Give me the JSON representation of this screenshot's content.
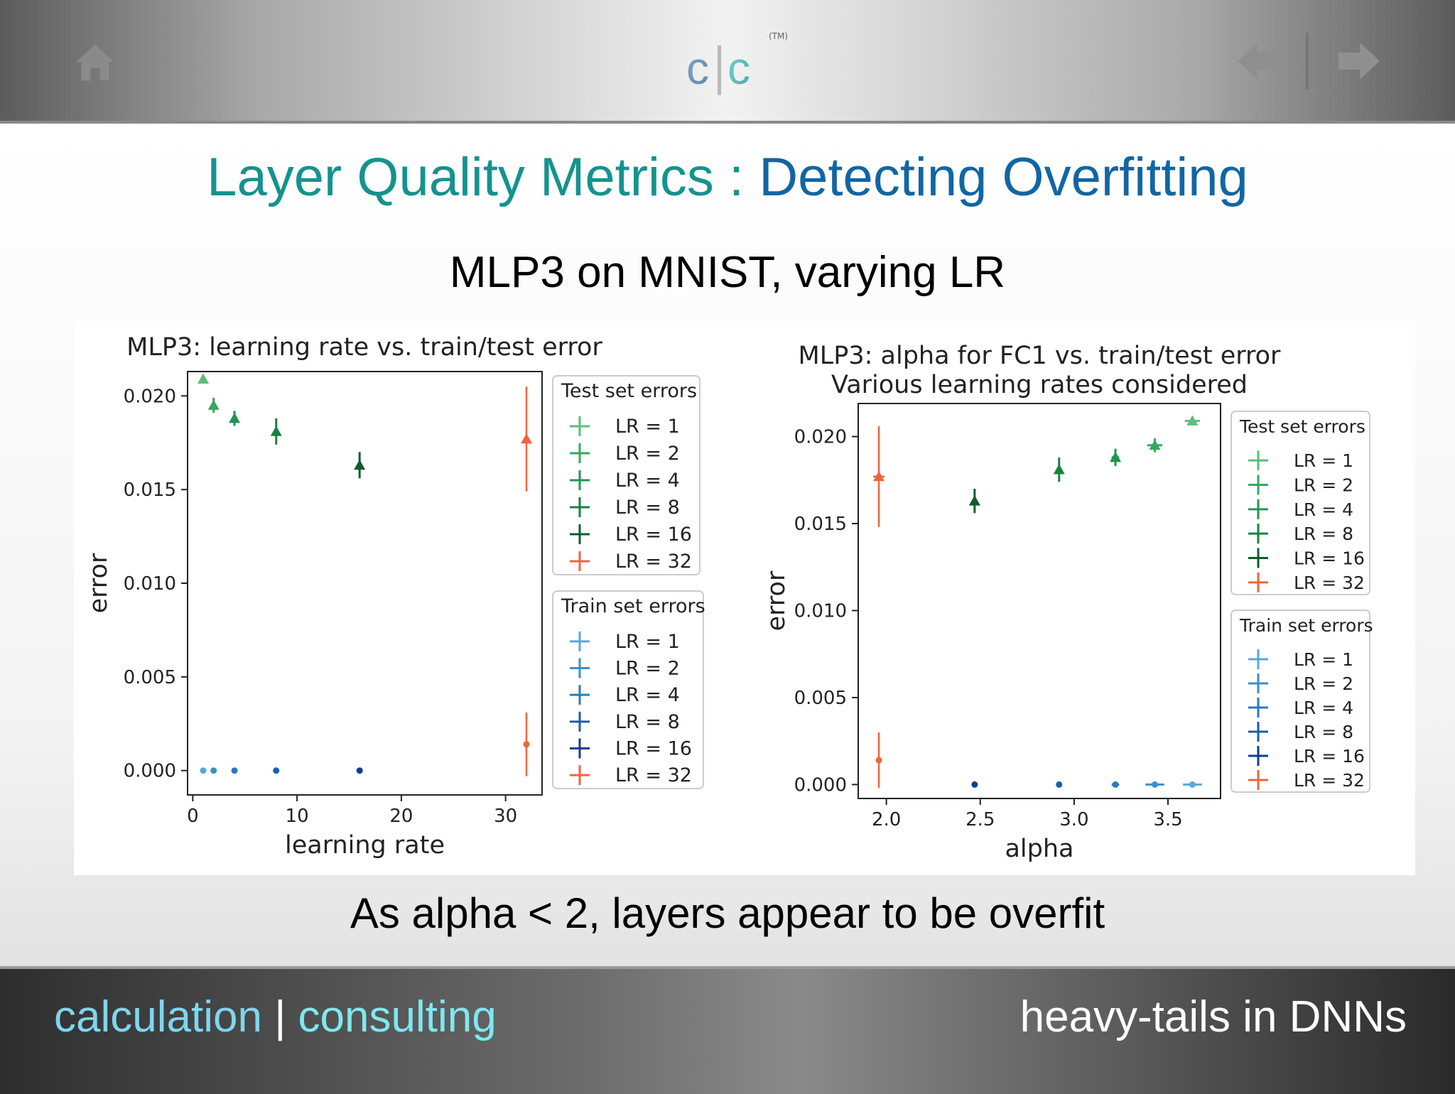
{
  "header": {
    "logo_left": "c",
    "logo_right": "c",
    "trademark": "(TM)",
    "icons": {
      "home": "home-icon",
      "prev": "arrow-left-icon",
      "next": "arrow-right-icon"
    }
  },
  "slide": {
    "title_part1": "Layer Quality Metrics : ",
    "title_part2": "Detecting Overfitting",
    "subtitle": "MLP3 on MNIST, varying LR",
    "caption": "As alpha < 2,  layers appear to be overfit"
  },
  "footer": {
    "left_a": "calculation",
    "left_sep": " | ",
    "left_b": "consulting",
    "right": "heavy-tails in DNNs"
  },
  "colors": {
    "title_teal": "#14938f",
    "title_blue": "#1166a3",
    "lr1": "#5bbf78",
    "lr2": "#34a861",
    "lr4": "#1f9650",
    "lr8": "#17823f",
    "lr16": "#0e5c2c",
    "lr32": "#f0643c",
    "train1": "#5aa7d8",
    "train2": "#3a8fcc",
    "train4": "#2a7ab9",
    "train8": "#1a5ea8",
    "train16": "#0e3f8c"
  },
  "chart_data": [
    {
      "type": "scatter",
      "title": "MLP3: learning rate vs. train/test error",
      "xlabel": "learning rate",
      "ylabel": "error",
      "xlim": [
        -0.5,
        33.5
      ],
      "ylim": [
        -0.0013,
        0.0213
      ],
      "xticks": [
        0,
        10,
        20,
        30
      ],
      "xtick_labels": [
        "0",
        "10",
        "20",
        "30"
      ],
      "yticks": [
        0.0,
        0.005,
        0.01,
        0.015,
        0.02
      ],
      "ytick_labels": [
        "0.000",
        "0.005",
        "0.010",
        "0.015",
        "0.020"
      ],
      "legend_test_title": "Test set errors",
      "legend_train_title": "Train set errors",
      "legend_labels": [
        "LR = 1",
        "LR = 2",
        "LR = 4",
        "LR = 8",
        "LR = 16",
        "LR = 32"
      ],
      "test": [
        {
          "name": "LR = 1",
          "x": 1,
          "y": 0.0209,
          "err": 0.0001
        },
        {
          "name": "LR = 2",
          "x": 2,
          "y": 0.0195,
          "err": 0.0004
        },
        {
          "name": "LR = 4",
          "x": 4,
          "y": 0.0188,
          "err": 0.0004
        },
        {
          "name": "LR = 8",
          "x": 8,
          "y": 0.0181,
          "err": 0.0007
        },
        {
          "name": "LR = 16",
          "x": 16,
          "y": 0.0163,
          "err": 0.0007
        },
        {
          "name": "LR = 32",
          "x": 32,
          "y": 0.0177,
          "err": 0.0028
        }
      ],
      "train": [
        {
          "name": "LR = 1",
          "x": 1,
          "y": 0.0,
          "err": 0.0
        },
        {
          "name": "LR = 2",
          "x": 2,
          "y": 0.0,
          "err": 0.0
        },
        {
          "name": "LR = 4",
          "x": 4,
          "y": 0.0,
          "err": 0.0
        },
        {
          "name": "LR = 8",
          "x": 8,
          "y": 0.0,
          "err": 0.0
        },
        {
          "name": "LR = 16",
          "x": 16,
          "y": 0.0,
          "err": 0.0
        },
        {
          "name": "LR = 32",
          "x": 32,
          "y": 0.0014,
          "err": 0.0017
        }
      ]
    },
    {
      "type": "scatter",
      "title": "MLP3: alpha for FC1 vs. train/test error",
      "subtitle": "Various learning rates considered",
      "xlabel": "alpha",
      "ylabel": "error",
      "xlim": [
        1.85,
        3.78
      ],
      "ylim": [
        -0.0008,
        0.0219
      ],
      "xticks": [
        2.0,
        2.5,
        3.0,
        3.5
      ],
      "xtick_labels": [
        "2.0",
        "2.5",
        "3.0",
        "3.5"
      ],
      "yticks": [
        0.0,
        0.005,
        0.01,
        0.015,
        0.02
      ],
      "ytick_labels": [
        "0.000",
        "0.005",
        "0.010",
        "0.015",
        "0.020"
      ],
      "legend_test_title": "Test set errors",
      "legend_train_title": "Train set errors",
      "legend_labels": [
        "LR = 1",
        "LR = 2",
        "LR = 4",
        "LR = 8",
        "LR = 16",
        "LR = 32"
      ],
      "test": [
        {
          "name": "LR = 1",
          "x": 3.63,
          "y": 0.0209,
          "xerr": 0.04,
          "err": 0.0001
        },
        {
          "name": "LR = 2",
          "x": 3.43,
          "y": 0.0195,
          "xerr": 0.04,
          "err": 0.0004
        },
        {
          "name": "LR = 4",
          "x": 3.22,
          "y": 0.0188,
          "xerr": 0.02,
          "err": 0.0005
        },
        {
          "name": "LR = 8",
          "x": 2.92,
          "y": 0.0181,
          "xerr": 0.01,
          "err": 0.0007
        },
        {
          "name": "LR = 16",
          "x": 2.47,
          "y": 0.0163,
          "xerr": 0.01,
          "err": 0.0007
        },
        {
          "name": "LR = 32",
          "x": 1.96,
          "y": 0.0177,
          "xerr": 0.03,
          "err": 0.0029
        }
      ],
      "train": [
        {
          "name": "LR = 1",
          "x": 3.63,
          "y": 0.0,
          "xerr": 0.05,
          "err": 0.0
        },
        {
          "name": "LR = 2",
          "x": 3.43,
          "y": 0.0,
          "xerr": 0.05,
          "err": 0.0
        },
        {
          "name": "LR = 4",
          "x": 3.22,
          "y": 0.0,
          "xerr": 0.02,
          "err": 0.0
        },
        {
          "name": "LR = 8",
          "x": 2.92,
          "y": 0.0,
          "xerr": 0.0,
          "err": 0.0
        },
        {
          "name": "LR = 16",
          "x": 2.47,
          "y": 0.0,
          "xerr": 0.0,
          "err": 0.0
        },
        {
          "name": "LR = 32",
          "x": 1.96,
          "y": 0.0014,
          "xerr": 0.0,
          "err": 0.0016
        }
      ]
    }
  ]
}
